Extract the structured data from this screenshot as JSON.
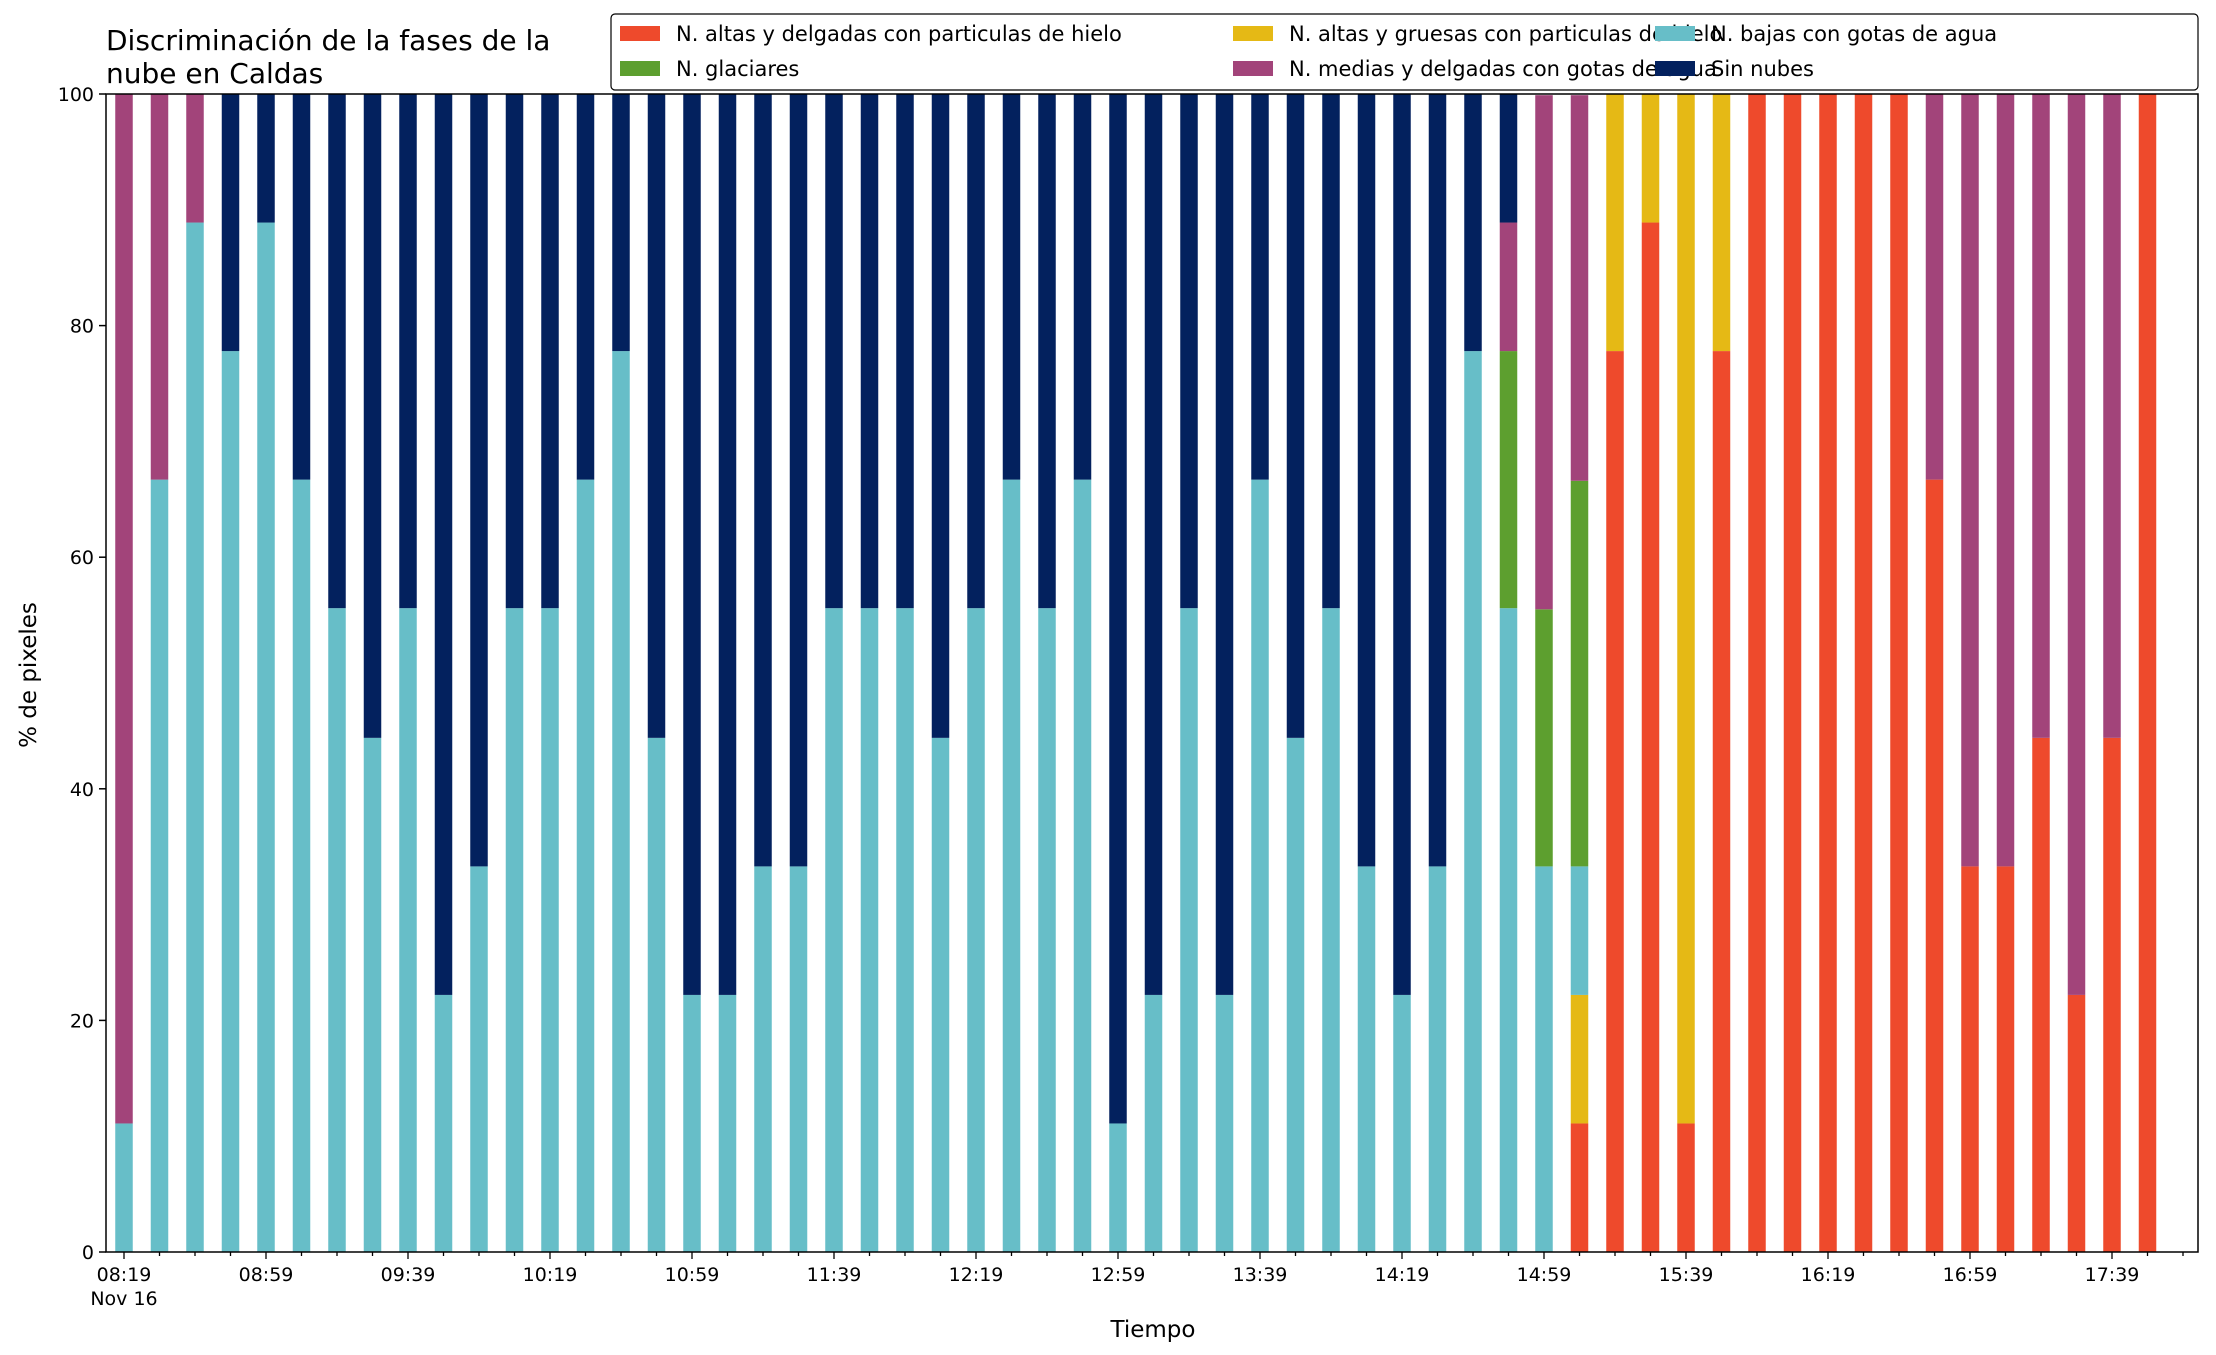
{
  "chart_data": {
    "type": "bar",
    "stacked": true,
    "title_lines": [
      "Discriminación de la fases de la",
      "nube en Caldas"
    ],
    "xlabel": "Tiempo",
    "ylabel": "% de pixeles",
    "ylim": [
      0,
      100
    ],
    "yticks": [
      0,
      20,
      40,
      60,
      80,
      100
    ],
    "grid": false,
    "legend_position": "top-right",
    "x_date_label": "Nov 16",
    "x_tick_labels": [
      {
        "index": 0,
        "label": "08:19"
      },
      {
        "index": 4,
        "label": "08:59"
      },
      {
        "index": 8,
        "label": "09:39"
      },
      {
        "index": 12,
        "label": "10:19"
      },
      {
        "index": 16,
        "label": "10:59"
      },
      {
        "index": 20,
        "label": "11:39"
      },
      {
        "index": 24,
        "label": "12:19"
      },
      {
        "index": 28,
        "label": "12:59"
      },
      {
        "index": 32,
        "label": "13:39"
      },
      {
        "index": 36,
        "label": "14:19"
      },
      {
        "index": 40,
        "label": "14:59"
      },
      {
        "index": 44,
        "label": "15:39"
      },
      {
        "index": 48,
        "label": "16:19"
      },
      {
        "index": 52,
        "label": "16:59"
      },
      {
        "index": 56,
        "label": "17:39"
      }
    ],
    "categories": [
      "08:19",
      "08:29",
      "08:39",
      "08:49",
      "08:59",
      "09:09",
      "09:19",
      "09:29",
      "09:39",
      "09:49",
      "09:59",
      "10:09",
      "10:19",
      "10:29",
      "10:39",
      "10:49",
      "10:59",
      "11:09",
      "11:19",
      "11:29",
      "11:39",
      "11:49",
      "11:59",
      "12:09",
      "12:19",
      "12:29",
      "12:39",
      "12:49",
      "12:59",
      "13:09",
      "13:19",
      "13:29",
      "13:39",
      "13:49",
      "13:59",
      "14:09",
      "14:19",
      "14:29",
      "14:39",
      "14:49",
      "14:59",
      "15:09",
      "15:19",
      "15:29",
      "15:39",
      "15:49",
      "15:59",
      "16:09",
      "16:19",
      "16:29",
      "16:39",
      "16:49",
      "16:59",
      "17:09",
      "17:19",
      "17:29",
      "17:39",
      "17:49"
    ],
    "series": [
      {
        "name": "N. altas y delgadas con particulas de hielo",
        "color": "#ee4a2c",
        "values": [
          0,
          0,
          0,
          0,
          0,
          0,
          0,
          0,
          0,
          0,
          0,
          0,
          0,
          0,
          0,
          0,
          0,
          0,
          0,
          0,
          0,
          0,
          0,
          0,
          0,
          0,
          0,
          0,
          0,
          0,
          0,
          0,
          0,
          0,
          0,
          0,
          0,
          0,
          0,
          0,
          0,
          11.1,
          77.8,
          88.9,
          11.1,
          77.8,
          100,
          100,
          100,
          100,
          100,
          66.7,
          33.3,
          33.3,
          44.4,
          22.2,
          44.4,
          100
        ]
      },
      {
        "name": "N. altas y gruesas con particulas de hielo",
        "color": "#e5b915",
        "values": [
          0,
          0,
          0,
          0,
          0,
          0,
          0,
          0,
          0,
          0,
          0,
          0,
          0,
          0,
          0,
          0,
          0,
          0,
          0,
          0,
          0,
          0,
          0,
          0,
          0,
          0,
          0,
          0,
          0,
          0,
          0,
          0,
          0,
          0,
          0,
          0,
          0,
          0,
          0,
          0,
          0,
          11.1,
          22.2,
          11.1,
          88.9,
          22.2,
          0,
          0,
          0,
          0,
          0,
          0,
          0,
          0,
          0,
          0,
          0,
          0
        ]
      },
      {
        "name": "N. bajas con gotas de agua",
        "color": "#67bec8",
        "values": [
          11.1,
          66.7,
          88.9,
          77.8,
          88.9,
          66.7,
          55.6,
          44.4,
          55.6,
          22.2,
          33.3,
          55.6,
          55.6,
          66.7,
          77.8,
          44.4,
          22.2,
          22.2,
          33.3,
          33.3,
          55.6,
          55.6,
          55.6,
          44.4,
          55.6,
          66.7,
          55.6,
          66.7,
          11.1,
          22.2,
          55.6,
          22.2,
          66.7,
          44.4,
          55.6,
          33.3,
          22.2,
          33.3,
          77.8,
          55.6,
          33.3,
          11.1,
          0,
          0,
          0,
          0,
          0,
          0,
          0,
          0,
          0,
          0,
          0,
          0,
          0,
          0,
          0,
          0
        ]
      },
      {
        "name": "N. glaciares",
        "color": "#5d9f2f",
        "values": [
          0,
          0,
          0,
          0,
          0,
          0,
          0,
          0,
          0,
          0,
          0,
          0,
          0,
          0,
          0,
          0,
          0,
          0,
          0,
          0,
          0,
          0,
          0,
          0,
          0,
          0,
          0,
          0,
          0,
          0,
          0,
          0,
          0,
          0,
          0,
          0,
          0,
          0,
          0,
          22.2,
          22.2,
          33.3,
          0,
          0,
          0,
          0,
          0,
          0,
          0,
          0,
          0,
          0,
          0,
          0,
          0,
          0,
          0,
          0
        ]
      },
      {
        "name": "N. medias y delgadas con gotas de agua",
        "color": "#a2447a",
        "values": [
          88.9,
          33.3,
          11.1,
          0,
          0,
          0,
          0,
          0,
          0,
          0,
          0,
          0,
          0,
          0,
          0,
          0,
          0,
          0,
          0,
          0,
          0,
          0,
          0,
          0,
          0,
          0,
          0,
          0,
          0,
          0,
          0,
          0,
          0,
          0,
          0,
          0,
          0,
          0,
          0,
          11.1,
          44.4,
          33.3,
          0,
          0,
          0,
          0,
          0,
          0,
          0,
          0,
          0,
          33.3,
          66.7,
          66.7,
          55.6,
          77.8,
          55.6,
          0
        ]
      },
      {
        "name": "Sin nubes",
        "color": "#03215e",
        "values": [
          0,
          0,
          0,
          22.2,
          11.1,
          33.3,
          44.4,
          55.6,
          44.4,
          77.8,
          66.7,
          44.4,
          44.4,
          33.3,
          22.2,
          55.6,
          77.8,
          77.8,
          66.7,
          66.7,
          44.4,
          44.4,
          44.4,
          55.6,
          44.4,
          33.3,
          44.4,
          33.3,
          88.9,
          77.8,
          44.4,
          77.8,
          33.3,
          55.6,
          44.4,
          66.7,
          77.8,
          66.7,
          22.2,
          11.1,
          0,
          0,
          0,
          0,
          0,
          0,
          0,
          0,
          0,
          0,
          0,
          0,
          0,
          0,
          0,
          0,
          0,
          0
        ]
      }
    ]
  }
}
